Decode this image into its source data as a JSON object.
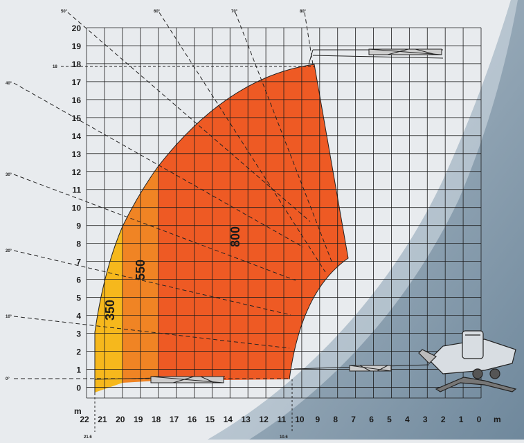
{
  "chart_data": {
    "type": "load_chart",
    "x_axis": {
      "unit": "m",
      "tick_labels": [
        "22",
        "21",
        "20",
        "19",
        "18",
        "17",
        "16",
        "15",
        "14",
        "13",
        "12",
        "11",
        "10",
        "9",
        "8",
        "7",
        "6",
        "5",
        "4",
        "3",
        "2",
        "1",
        "0"
      ],
      "extra_marks": [
        "21.6",
        "10.6"
      ]
    },
    "y_axis": {
      "unit": "m",
      "tick_labels": [
        "0",
        "1",
        "2",
        "3",
        "4",
        "5",
        "6",
        "7",
        "8",
        "9",
        "10",
        "11",
        "12",
        "13",
        "14",
        "15",
        "16",
        "17",
        "18",
        "19",
        "20"
      ],
      "extra_marks": [
        "18"
      ]
    },
    "boom_angles": [
      "0°",
      "10°",
      "20°",
      "30°",
      "40°",
      "50°",
      "60°",
      "70°",
      "80°"
    ],
    "zones": [
      {
        "capacity": "350",
        "color": "#f6b81c"
      },
      {
        "capacity": "550",
        "color": "#f08424"
      },
      {
        "capacity": "800",
        "color": "#ee5a24"
      }
    ],
    "colors": {
      "grid": "#1c1c1c",
      "background_left": "#e8ebee",
      "background_right": "#7f97a9"
    }
  }
}
